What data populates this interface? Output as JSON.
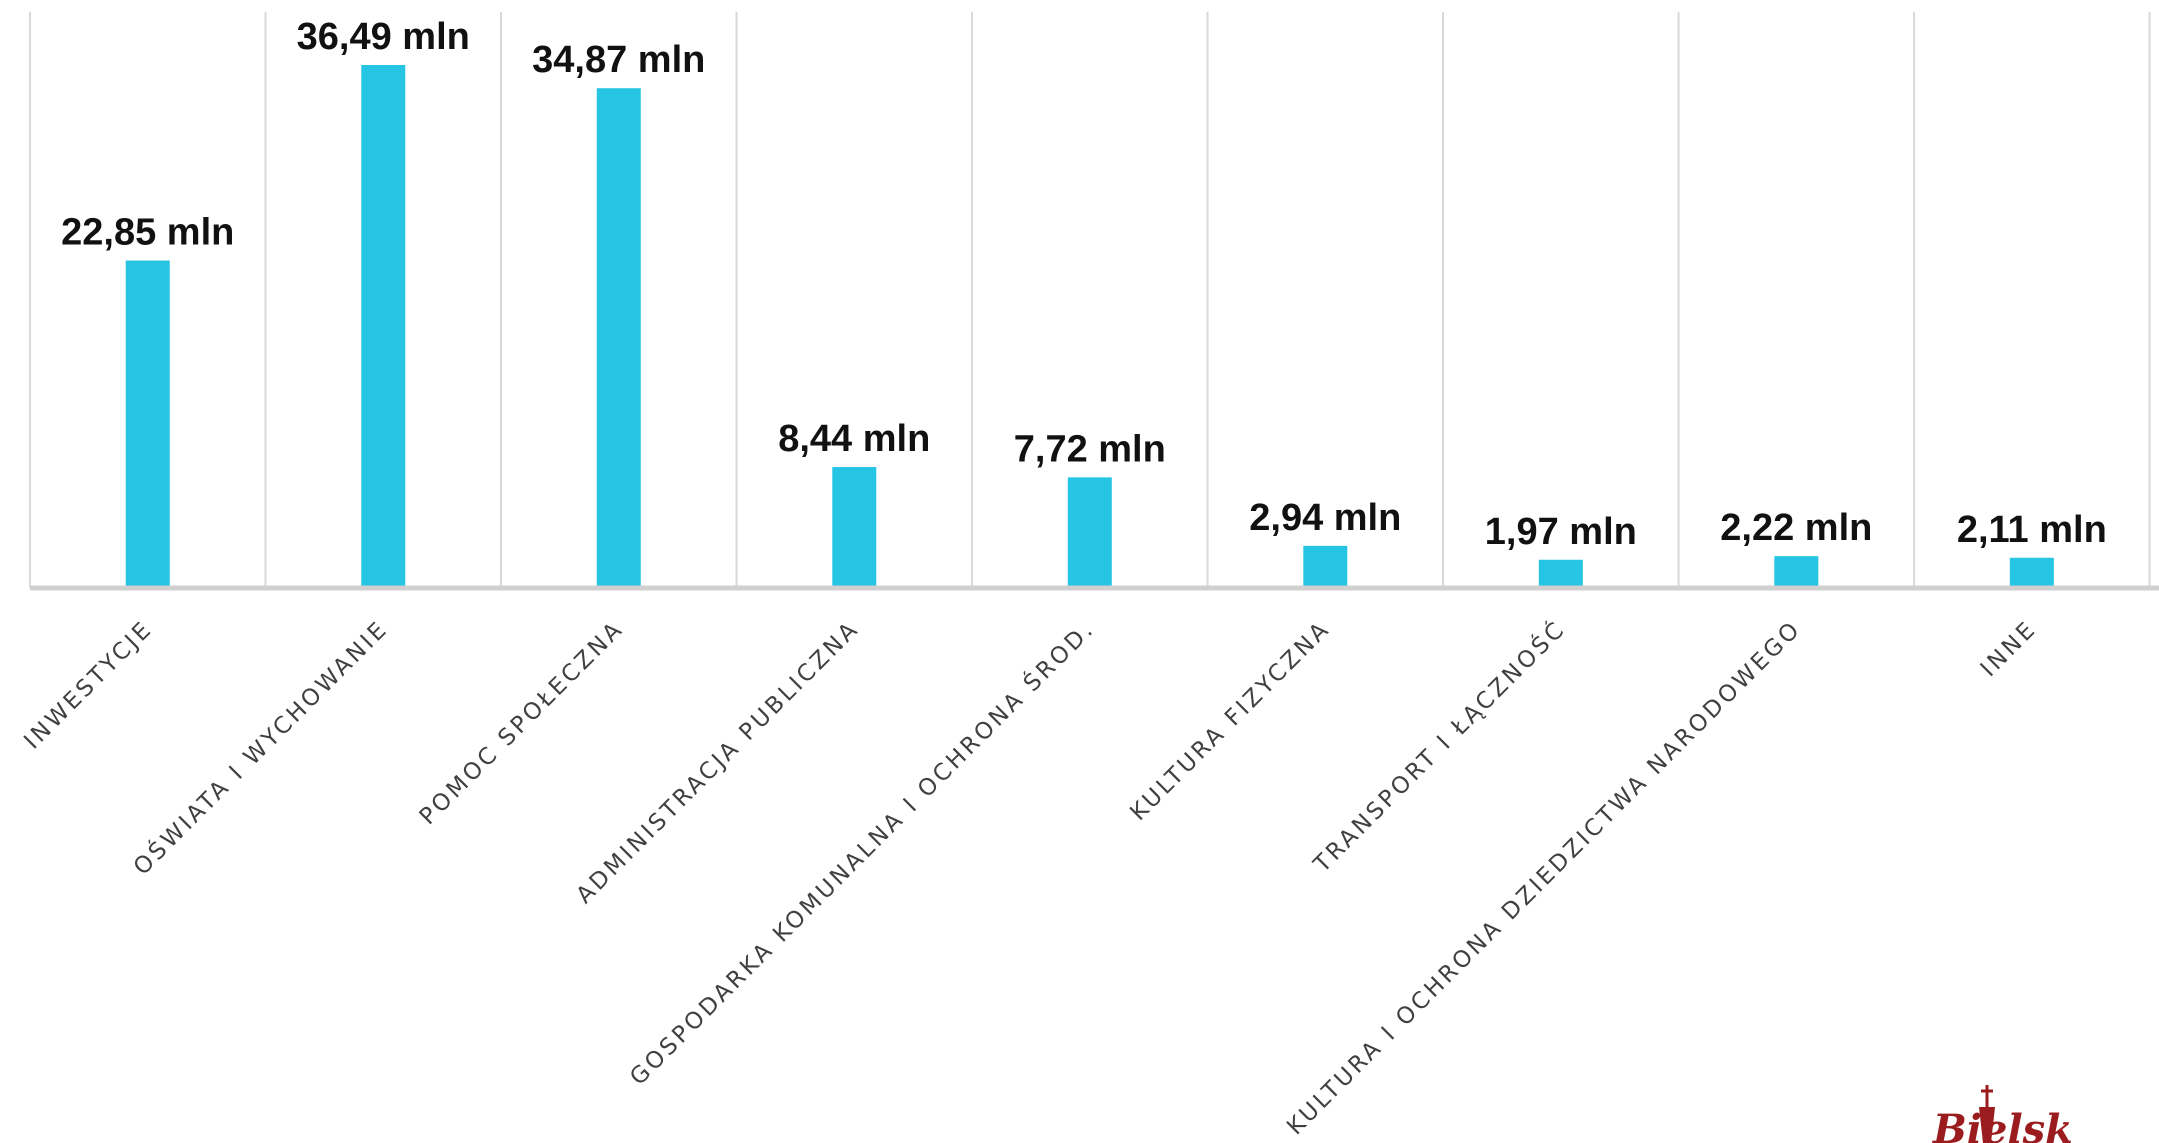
{
  "chart_data": {
    "type": "bar",
    "categories": [
      "INWESTYCJE",
      "OŚWIATA I WYCHOWANIE",
      "POMOC SPOŁECZNA",
      "ADMINISTRACJA PUBLICZNA",
      "GOSPODARKA KOMUNALNA I OCHRONA ŚROD.",
      "KULTURA FIZYCZNA",
      "TRANSPORT I ŁĄCZNOŚĆ",
      "KULTURA I OCHRONA DZIEDZICTWA NARODOWEGO",
      "INNE"
    ],
    "values": [
      22.85,
      36.49,
      34.87,
      8.44,
      7.72,
      2.94,
      1.97,
      2.22,
      2.11
    ],
    "data_labels": [
      "22,85 mln",
      "36,49 mln",
      "34,87 mln",
      "8,44 mln",
      "7,72 mln",
      "2,94 mln",
      "1,97 mln",
      "2,22 mln",
      "2,11 mln"
    ],
    "ylim": [
      0,
      40
    ],
    "grid": "vertical separators",
    "legend": "none",
    "bar_color": "#25c5e3"
  },
  "logo": {
    "text": "Bielsk",
    "color": "#9b1c1f"
  }
}
